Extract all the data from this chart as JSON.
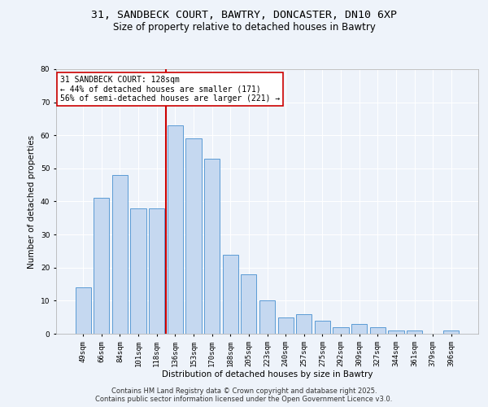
{
  "title_line1": "31, SANDBECK COURT, BAWTRY, DONCASTER, DN10 6XP",
  "title_line2": "Size of property relative to detached houses in Bawtry",
  "xlabel": "Distribution of detached houses by size in Bawtry",
  "ylabel": "Number of detached properties",
  "categories": [
    "49sqm",
    "66sqm",
    "84sqm",
    "101sqm",
    "118sqm",
    "136sqm",
    "153sqm",
    "170sqm",
    "188sqm",
    "205sqm",
    "223sqm",
    "240sqm",
    "257sqm",
    "275sqm",
    "292sqm",
    "309sqm",
    "327sqm",
    "344sqm",
    "361sqm",
    "379sqm",
    "396sqm"
  ],
  "values": [
    14,
    41,
    48,
    38,
    38,
    63,
    59,
    53,
    24,
    18,
    10,
    5,
    6,
    4,
    2,
    3,
    2,
    1,
    1,
    0,
    1
  ],
  "bar_color": "#c5d8f0",
  "bar_edge_color": "#5b9bd5",
  "background_color": "#eef3fa",
  "grid_color": "#ffffff",
  "property_line_index": 5,
  "annotation_line1": "31 SANDBECK COURT: 128sqm",
  "annotation_line2": "← 44% of detached houses are smaller (171)",
  "annotation_line3": "56% of semi-detached houses are larger (221) →",
  "annotation_box_color": "#ffffff",
  "annotation_box_edge": "#cc0000",
  "vline_color": "#cc0000",
  "ylim": [
    0,
    80
  ],
  "yticks": [
    0,
    10,
    20,
    30,
    40,
    50,
    60,
    70,
    80
  ],
  "footer_line1": "Contains HM Land Registry data © Crown copyright and database right 2025.",
  "footer_line2": "Contains public sector information licensed under the Open Government Licence v3.0.",
  "title_fontsize": 9.5,
  "subtitle_fontsize": 8.5,
  "axis_label_fontsize": 7.5,
  "tick_fontsize": 6.5,
  "annotation_fontsize": 7,
  "footer_fontsize": 6
}
